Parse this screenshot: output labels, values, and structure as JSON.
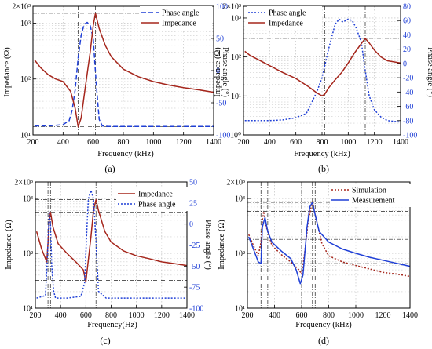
{
  "chart_data": [
    {
      "panel": "(a)",
      "type": "line",
      "xlabel": "Frequency (kHz)",
      "ylabel": "Impedance (Ω)",
      "y2label": "Phase angle (°)",
      "xlim": [
        200,
        1400
      ],
      "ylim": [
        10,
        2000
      ],
      "yscale": "log",
      "y2lim": [
        -100,
        100
      ],
      "xticks": [
        "200",
        "400",
        "600",
        "800",
        "1000",
        "1200",
        "1400"
      ],
      "yticks": [
        "10¹",
        "10²",
        "10³"
      ],
      "ytop_label": "2×10³",
      "y2ticks": [
        "-100",
        "-50",
        "0",
        "50",
        "100"
      ],
      "legend": "top-right",
      "grid": true,
      "series": [
        {
          "name": "Phase angle",
          "axis": "right",
          "color": "#1f3fd6",
          "dash": "dashed",
          "x": [
            210,
            300,
            400,
            440,
            460,
            480,
            500,
            520,
            540,
            560,
            580,
            600,
            620,
            640,
            660,
            700,
            800,
            1000,
            1200,
            1400
          ],
          "y": [
            -86,
            -86,
            -84,
            -78,
            -62,
            -30,
            20,
            55,
            72,
            75,
            70,
            50,
            -20,
            -76,
            -86,
            -87,
            -87,
            -87,
            -87,
            -87
          ]
        },
        {
          "name": "Impedance",
          "axis": "left",
          "color": "#a5261c",
          "dash": "solid",
          "x": [
            210,
            250,
            300,
            350,
            400,
            450,
            480,
            500,
            520,
            550,
            580,
            600,
            615,
            640,
            680,
            720,
            800,
            900,
            1000,
            1100,
            1200,
            1300,
            1400
          ],
          "y": [
            220,
            160,
            120,
            100,
            90,
            60,
            30,
            14,
            20,
            80,
            300,
            900,
            1500,
            800,
            400,
            250,
            150,
            110,
            90,
            78,
            70,
            64,
            58
          ]
        }
      ],
      "annotations": {
        "hlines": [
          1500,
          14
        ],
        "vlines": [
          500,
          615
        ]
      }
    },
    {
      "panel": "(b)",
      "type": "line",
      "xlabel": "Frequency (kHz)",
      "ylabel": "Impedance (Ω)",
      "y2label": "Phase angle (°)",
      "xlim": [
        200,
        1400
      ],
      "ylim": [
        1,
        2000
      ],
      "yscale": "log",
      "y2lim": [
        -100,
        80
      ],
      "xticks": [
        "200",
        "400",
        "600",
        "800",
        "1000",
        "1200",
        "1400"
      ],
      "yticks": [
        "10⁰",
        "10¹",
        "10²",
        "10³"
      ],
      "ytop_label": "2×10³",
      "y2ticks": [
        "-100",
        "-80",
        "-60",
        "-40",
        "-20",
        "0",
        "20",
        "40",
        "60",
        "80"
      ],
      "legend": "top-left",
      "grid": true,
      "series": [
        {
          "name": "Phase angle",
          "axis": "right",
          "color": "#1f3fd6",
          "dash": "dotted",
          "x": [
            210,
            300,
            400,
            500,
            600,
            680,
            720,
            760,
            800,
            850,
            900,
            930,
            960,
            1000,
            1030,
            1060,
            1100,
            1130,
            1160,
            1200,
            1250,
            1300,
            1400
          ],
          "y": [
            -80,
            -80,
            -80,
            -79,
            -76,
            -70,
            -55,
            -40,
            -20,
            20,
            55,
            62,
            58,
            62,
            60,
            50,
            30,
            -10,
            -45,
            -65,
            -75,
            -80,
            -82
          ]
        },
        {
          "name": "Impedance",
          "axis": "left",
          "color": "#a5261c",
          "dash": "solid",
          "x": [
            210,
            250,
            300,
            400,
            500,
            600,
            700,
            760,
            800,
            820,
            850,
            900,
            950,
            1000,
            1050,
            1100,
            1130,
            1160,
            1200,
            1250,
            1300,
            1400
          ],
          "y": [
            140,
            110,
            90,
            60,
            40,
            28,
            17,
            12,
            10,
            11,
            16,
            26,
            40,
            70,
            130,
            220,
            300,
            230,
            150,
            100,
            80,
            70
          ]
        }
      ],
      "annotations": {
        "hlines": [
          300,
          10
        ],
        "vlines": [
          820,
          1130
        ]
      }
    },
    {
      "panel": "(c)",
      "type": "line",
      "xlabel": "Frequency(Hz)",
      "ylabel": "Impedance (Ω)",
      "y2label": "Phase angle (°)",
      "xlim": [
        200,
        1400
      ],
      "ylim": [
        10,
        2000
      ],
      "yscale": "log",
      "y2lim": [
        -100,
        50
      ],
      "xticks": [
        "200",
        "400",
        "600",
        "800",
        "1000",
        "1200",
        "1400"
      ],
      "yticks": [
        "10¹",
        "10²",
        "10³"
      ],
      "ytop_label": "2×10³",
      "y2ticks": [
        "-100",
        "-75",
        "-50",
        "-25",
        "0",
        "25",
        "50"
      ],
      "legend": "top-right",
      "grid": true,
      "series": [
        {
          "name": "Impedance",
          "axis": "left",
          "color": "#a5261c",
          "dash": "solid",
          "x": [
            210,
            250,
            290,
            300,
            310,
            320,
            340,
            380,
            450,
            520,
            580,
            600,
            640,
            660,
            680,
            700,
            750,
            800,
            900,
            1000,
            1100,
            1200,
            1300,
            1400
          ],
          "y": [
            250,
            120,
            70,
            150,
            400,
            560,
            300,
            150,
            100,
            70,
            50,
            30,
            200,
            600,
            950,
            600,
            250,
            160,
            110,
            90,
            80,
            70,
            65,
            60
          ]
        },
        {
          "name": "Phase angle",
          "axis": "right",
          "color": "#1f3fd6",
          "dash": "dotted",
          "x": [
            210,
            280,
            295,
            310,
            320,
            330,
            345,
            360,
            450,
            560,
            590,
            610,
            620,
            640,
            660,
            680,
            700,
            760,
            900,
            1100,
            1400
          ],
          "y": [
            -88,
            -85,
            -40,
            15,
            0,
            -50,
            -80,
            -88,
            -88,
            -86,
            -70,
            0,
            30,
            40,
            30,
            -20,
            -80,
            -88,
            -88,
            -88,
            -88
          ]
        }
      ],
      "annotations": {
        "hlines": [
          950,
          560,
          32
        ],
        "vlines": [
          300,
          320,
          600,
          680
        ]
      }
    },
    {
      "panel": "(d)",
      "type": "line",
      "xlabel": "Frequency (kHz)",
      "ylabel": "Impedance (Ω)",
      "xlim": [
        200,
        1400
      ],
      "ylim": [
        10,
        2000
      ],
      "yscale": "log",
      "xticks": [
        "200",
        "400",
        "600",
        "800",
        "1000",
        "1200",
        "1400"
      ],
      "yticks": [
        "10¹",
        "10²",
        "10³"
      ],
      "ytop_label": "2×10³",
      "legend": "top-right",
      "grid": true,
      "series": [
        {
          "name": "Simulation",
          "axis": "left",
          "color": "#a5261c",
          "dash": "dotted",
          "x": [
            210,
            250,
            280,
            300,
            310,
            320,
            340,
            380,
            450,
            520,
            580,
            600,
            620,
            650,
            680,
            700,
            750,
            800,
            900,
            1000,
            1100,
            1200,
            1300,
            1400
          ],
          "y": [
            220,
            130,
            90,
            160,
            400,
            580,
            300,
            140,
            95,
            70,
            50,
            42,
            90,
            400,
            900,
            500,
            150,
            90,
            70,
            60,
            52,
            45,
            42,
            38
          ]
        },
        {
          "name": "Measurement",
          "axis": "left",
          "color": "#1f3fd6",
          "dash": "solid",
          "x": [
            210,
            250,
            280,
            300,
            310,
            330,
            350,
            380,
            450,
            520,
            560,
            590,
            610,
            640,
            660,
            680,
            700,
            730,
            800,
            900,
            1000,
            1100,
            1200,
            1300,
            1400
          ],
          "y": [
            200,
            110,
            70,
            65,
            300,
            450,
            250,
            160,
            110,
            80,
            50,
            28,
            40,
            300,
            700,
            850,
            500,
            250,
            160,
            120,
            100,
            85,
            75,
            66,
            58
          ]
        }
      ],
      "annotations": {
        "hlines": [
          850,
          580,
          180,
          65,
          42
        ],
        "vlines": [
          300,
          330,
          350,
          600,
          680,
          700
        ]
      }
    }
  ]
}
